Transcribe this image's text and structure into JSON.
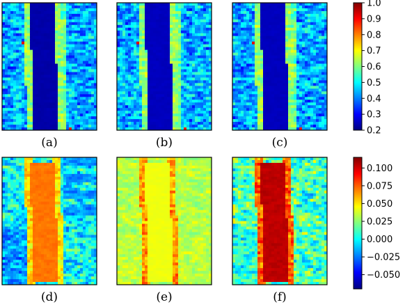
{
  "chart_data": [
    {
      "type": "heatmap",
      "panels": [
        "(a)",
        "(b)",
        "(c)"
      ],
      "colormap": "jet",
      "colorbar": {
        "min": 0.2,
        "max": 1.0,
        "ticks": [
          0.2,
          0.3,
          0.4,
          0.5,
          0.6,
          0.7,
          0.8,
          0.9,
          1.0
        ],
        "tick_labels": [
          "0.2",
          "0.3",
          "0.4",
          "0.5",
          "0.6",
          "0.7",
          "0.8",
          "0.9",
          "1.0"
        ]
      }
    },
    {
      "type": "heatmap",
      "panels": [
        "(d)",
        "(e)",
        "(f)"
      ],
      "colormap": "jet",
      "colorbar": {
        "min": -0.07,
        "max": 0.115,
        "ticks": [
          -0.05,
          -0.025,
          0.0,
          0.025,
          0.05,
          0.075,
          0.1
        ],
        "tick_labels": [
          "−0.050",
          "−0.025",
          "0.000",
          "0.025",
          "0.050",
          "0.075",
          "0.100"
        ]
      }
    }
  ]
}
